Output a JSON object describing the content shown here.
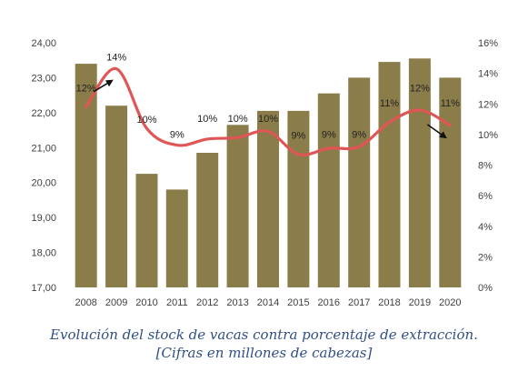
{
  "chart_data": {
    "type": "bar",
    "categories": [
      "2008",
      "2009",
      "2010",
      "2011",
      "2012",
      "2013",
      "2014",
      "2015",
      "2016",
      "2017",
      "2018",
      "2019",
      "2020"
    ],
    "series": [
      {
        "type": "bar",
        "axis": "left",
        "color": "#8b7d4a",
        "values": [
          23.4,
          22.2,
          20.25,
          19.8,
          20.85,
          21.65,
          22.05,
          22.05,
          22.55,
          23.0,
          23.45,
          23.55,
          23.0
        ]
      },
      {
        "type": "line",
        "axis": "right",
        "color": "#e05555",
        "values": [
          12,
          14,
          10,
          9,
          10,
          10,
          10,
          9,
          9,
          9,
          11,
          12,
          11
        ],
        "labels": [
          "12%",
          "14%",
          "10%",
          "9%",
          "10%",
          "10%",
          "10%",
          "9%",
          "9%",
          "9%",
          "11%",
          "12%",
          "11%"
        ],
        "curve_values": [
          11.8,
          14.3,
          10.4,
          9.3,
          9.7,
          9.8,
          10.2,
          8.7,
          9.1,
          9.2,
          10.8,
          11.6,
          10.6
        ]
      }
    ],
    "y_left": {
      "ylim": [
        17,
        24
      ],
      "ticks": [
        "17,00",
        "18,00",
        "19,00",
        "20,00",
        "21,00",
        "22,00",
        "23,00",
        "24,00"
      ]
    },
    "y_right": {
      "ylim": [
        0,
        16
      ],
      "ticks": [
        "0%",
        "2%",
        "4%",
        "6%",
        "8%",
        "10%",
        "12%",
        "14%",
        "16%"
      ]
    },
    "annotations": [
      {
        "type": "arrow",
        "color": "#111111",
        "from": {
          "x": "2008",
          "y_right": 12.5
        },
        "to": {
          "x": "2009",
          "y_right": 13.7
        }
      },
      {
        "type": "arrow",
        "color": "#111111",
        "from": {
          "x": "2019",
          "y_right": 11.0
        },
        "to": {
          "x": "2020",
          "y_right": 9.6
        }
      }
    ],
    "grid": false,
    "legend": "none"
  },
  "caption": {
    "line1": "Evolución del stock de vacas contra porcentaje de extracción.",
    "line2": "[Cifras en millones de cabezas]"
  }
}
